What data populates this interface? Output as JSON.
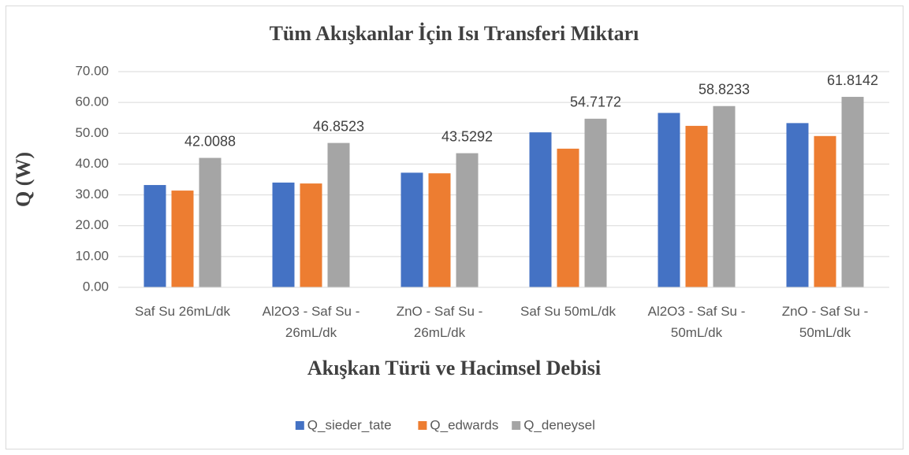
{
  "chart_data": {
    "type": "bar",
    "title": "Tüm Akışkanlar İçin Isı Transferi Miktarı",
    "xlabel": "Akışkan Türü ve Hacimsel Debisi",
    "ylabel": "Q (W)",
    "categories": [
      "Saf Su 26mL/dk",
      "Al2O3 - Saf Su - 26mL/dk",
      "ZnO - Saf Su - 26mL/dk",
      "Saf Su 50mL/dk",
      "Al2O3 - Saf Su - 50mL/dk",
      "ZnO - Saf Su - 50mL/dk"
    ],
    "series": [
      {
        "name": "Q_sieder_tate",
        "color": "#4472c4",
        "values": [
          33.2,
          34.0,
          37.2,
          50.3,
          56.6,
          53.3
        ]
      },
      {
        "name": "Q_edwards",
        "color": "#ed7d31",
        "values": [
          31.4,
          33.7,
          37.0,
          45.0,
          52.4,
          49.1
        ]
      },
      {
        "name": "Q_deneysel",
        "color": "#a5a5a5",
        "values": [
          42.0088,
          46.8523,
          43.5292,
          54.7172,
          58.8233,
          61.8142
        ],
        "show_value_labels": true
      }
    ],
    "ylim": [
      0,
      70
    ],
    "yticks": [
      {
        "value": 0,
        "label": "0.00"
      },
      {
        "value": 10,
        "label": "10.00"
      },
      {
        "value": 20,
        "label": "20.00"
      },
      {
        "value": 30,
        "label": "30.00"
      },
      {
        "value": 40,
        "label": "40.00"
      },
      {
        "value": 50,
        "label": "50.00"
      },
      {
        "value": 60,
        "label": "60.00"
      },
      {
        "value": 70,
        "label": "70.00"
      }
    ],
    "grid": true,
    "legend": "bottom"
  }
}
